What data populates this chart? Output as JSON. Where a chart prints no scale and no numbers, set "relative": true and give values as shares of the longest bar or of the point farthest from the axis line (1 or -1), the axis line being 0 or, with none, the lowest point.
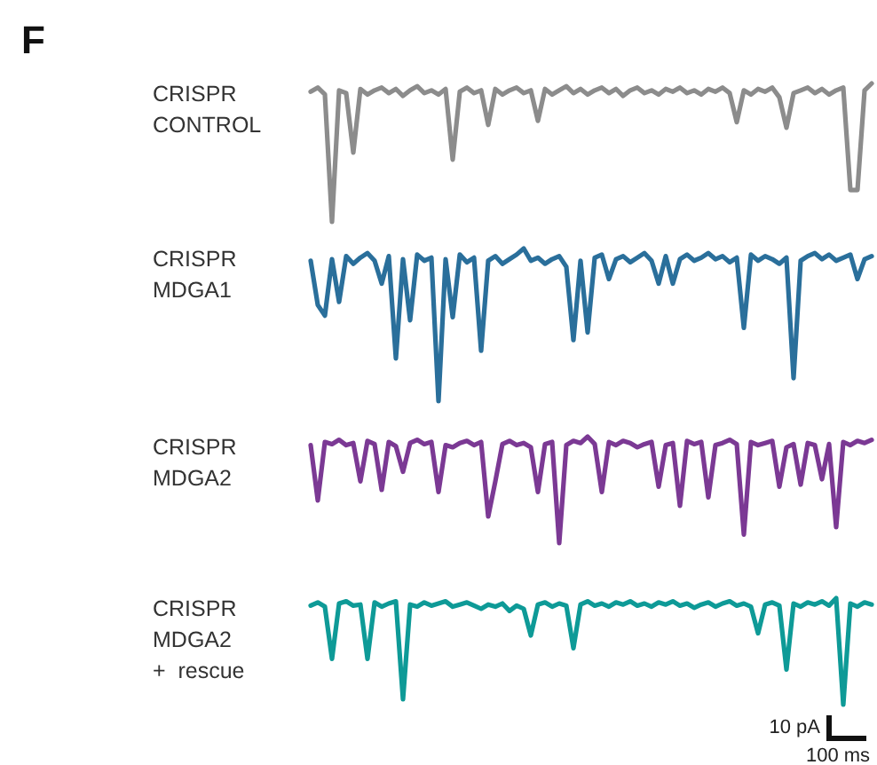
{
  "chart_data": [
    {
      "type": "line",
      "title": "CRISPR\nCONTROL",
      "relative": true,
      "annotations": [
        "F"
      ],
      "line_style": "solid",
      "categories": [
        null,
        null,
        null,
        null,
        null,
        null,
        null,
        null,
        null,
        null,
        null,
        null,
        null,
        null,
        null,
        null,
        null,
        null,
        null,
        null,
        null,
        null,
        null,
        null,
        null,
        null,
        null,
        null,
        null,
        null,
        null,
        null,
        null,
        null,
        null,
        null,
        null,
        null,
        null,
        null,
        null,
        null,
        null,
        null,
        null,
        null,
        null,
        null,
        null,
        null,
        null,
        null,
        null,
        null,
        null,
        null,
        null,
        null,
        null,
        null,
        null,
        null,
        null,
        null,
        null,
        null,
        null,
        null,
        null,
        null,
        null,
        null,
        null,
        null,
        null,
        null,
        null,
        null,
        null,
        null
      ],
      "series": [
        {
          "color": "#8c8c8c",
          "values": [
            0.94,
            0.97,
            0.92,
            0,
            0.95,
            0.93,
            0.5,
            0.96,
            0.92,
            0.95,
            0.97,
            0.93,
            0.96,
            0.91,
            0.95,
            0.98,
            0.93,
            0.95,
            0.92,
            0.96,
            0.45,
            0.94,
            0.97,
            0.93,
            0.95,
            0.7,
            0.96,
            0.92,
            0.95,
            0.97,
            0.93,
            0.95,
            0.73,
            0.96,
            0.92,
            0.95,
            0.98,
            0.93,
            0.96,
            0.92,
            0.95,
            0.97,
            0.93,
            0.96,
            0.91,
            0.95,
            0.97,
            0.93,
            0.95,
            0.92,
            0.96,
            0.94,
            0.97,
            0.93,
            0.95,
            0.92,
            0.96,
            0.94,
            0.97,
            0.93,
            0.72,
            0.95,
            0.92,
            0.96,
            0.94,
            0.97,
            0.9,
            0.68,
            0.93,
            0.95,
            0.97,
            0.93,
            0.96,
            0.92,
            0.95,
            0.97,
            0.23,
            0.23,
            0.95,
            1
          ]
        }
      ]
    },
    {
      "type": "line",
      "title": "CRISPR\nMDGA1",
      "relative": true,
      "line_style": "solid",
      "categories": [
        null,
        null,
        null,
        null,
        null,
        null,
        null,
        null,
        null,
        null,
        null,
        null,
        null,
        null,
        null,
        null,
        null,
        null,
        null,
        null,
        null,
        null,
        null,
        null,
        null,
        null,
        null,
        null,
        null,
        null,
        null,
        null,
        null,
        null,
        null,
        null,
        null,
        null,
        null,
        null,
        null,
        null,
        null,
        null,
        null,
        null,
        null,
        null,
        null,
        null,
        null,
        null,
        null,
        null,
        null,
        null,
        null,
        null,
        null,
        null,
        null,
        null,
        null,
        null,
        null,
        null,
        null,
        null,
        null,
        null,
        null,
        null,
        null,
        null,
        null,
        null,
        null,
        null,
        null,
        null
      ],
      "series": [
        {
          "color": "#2a6f9b",
          "values": [
            0.92,
            0.63,
            0.56,
            0.93,
            0.65,
            0.95,
            0.9,
            0.94,
            0.97,
            0.92,
            0.77,
            0.95,
            0.28,
            0.93,
            0.53,
            0.96,
            0.92,
            0.94,
            0,
            0.93,
            0.55,
            0.96,
            0.91,
            0.94,
            0.33,
            0.92,
            0.95,
            0.9,
            0.93,
            0.96,
            1,
            0.92,
            0.94,
            0.9,
            0.93,
            0.95,
            0.88,
            0.4,
            0.92,
            0.45,
            0.94,
            0.96,
            0.8,
            0.93,
            0.95,
            0.91,
            0.94,
            0.97,
            0.92,
            0.77,
            0.95,
            0.77,
            0.93,
            0.96,
            0.92,
            0.94,
            0.97,
            0.93,
            0.95,
            0.91,
            0.94,
            0.48,
            0.96,
            0.92,
            0.95,
            0.93,
            0.9,
            0.94,
            0.15,
            0.92,
            0.95,
            0.97,
            0.93,
            0.96,
            0.92,
            0.94,
            0.96,
            0.8,
            0.93,
            0.95
          ]
        }
      ]
    },
    {
      "type": "line",
      "title": "CRISPR\nMDGA2",
      "relative": true,
      "line_style": "solid",
      "categories": [
        null,
        null,
        null,
        null,
        null,
        null,
        null,
        null,
        null,
        null,
        null,
        null,
        null,
        null,
        null,
        null,
        null,
        null,
        null,
        null,
        null,
        null,
        null,
        null,
        null,
        null,
        null,
        null,
        null,
        null,
        null,
        null,
        null,
        null,
        null,
        null,
        null,
        null,
        null,
        null,
        null,
        null,
        null,
        null,
        null,
        null,
        null,
        null,
        null,
        null,
        null,
        null,
        null,
        null,
        null,
        null,
        null,
        null,
        null,
        null,
        null,
        null,
        null,
        null,
        null,
        null,
        null,
        null,
        null,
        null,
        null,
        null,
        null,
        null,
        null,
        null,
        null,
        null,
        null,
        null
      ],
      "series": [
        {
          "color": "#7b3994",
          "values": [
            0.92,
            0.4,
            0.95,
            0.93,
            0.97,
            0.92,
            0.94,
            0.58,
            0.96,
            0.93,
            0.5,
            0.95,
            0.91,
            0.67,
            0.94,
            0.97,
            0.93,
            0.95,
            0.48,
            0.92,
            0.9,
            0.94,
            0.96,
            0.92,
            0.95,
            0.25,
            0.58,
            0.93,
            0.96,
            0.92,
            0.94,
            0.9,
            0.48,
            0.93,
            0.95,
            0,
            0.92,
            0.96,
            0.94,
            1,
            0.93,
            0.48,
            0.95,
            0.92,
            0.96,
            0.94,
            0.9,
            0.93,
            0.95,
            0.53,
            0.92,
            0.94,
            0.35,
            0.96,
            0.93,
            0.95,
            0.43,
            0.92,
            0.94,
            0.97,
            0.93,
            0.08,
            0.95,
            0.92,
            0.94,
            0.96,
            0.53,
            0.9,
            0.93,
            0.55,
            0.94,
            0.92,
            0.6,
            0.93,
            0.15,
            0.95,
            0.92,
            0.96,
            0.94,
            0.97
          ]
        }
      ]
    },
    {
      "type": "line",
      "title": "CRISPR\nMDGA2\n+  rescue",
      "relative": true,
      "line_style": "solid",
      "annotations": [
        "10 pA",
        "100 ms"
      ],
      "categories": [
        null,
        null,
        null,
        null,
        null,
        null,
        null,
        null,
        null,
        null,
        null,
        null,
        null,
        null,
        null,
        null,
        null,
        null,
        null,
        null,
        null,
        null,
        null,
        null,
        null,
        null,
        null,
        null,
        null,
        null,
        null,
        null,
        null,
        null,
        null,
        null,
        null,
        null,
        null,
        null,
        null,
        null,
        null,
        null,
        null,
        null,
        null,
        null,
        null,
        null,
        null,
        null,
        null,
        null,
        null,
        null,
        null,
        null,
        null,
        null,
        null,
        null,
        null,
        null,
        null,
        null,
        null,
        null,
        null,
        null,
        null,
        null,
        null,
        null,
        null,
        null,
        null,
        null,
        null,
        null
      ],
      "series": [
        {
          "color": "#0e9a97",
          "values": [
            0.93,
            0.96,
            0.92,
            0.43,
            0.95,
            0.97,
            0.93,
            0.94,
            0.43,
            0.96,
            0.92,
            0.95,
            0.97,
            0.05,
            0.94,
            0.92,
            0.96,
            0.93,
            0.95,
            0.97,
            0.92,
            0.94,
            0.96,
            0.93,
            0.9,
            0.94,
            0.92,
            0.95,
            0.88,
            0.93,
            0.9,
            0.65,
            0.94,
            0.96,
            0.92,
            0.95,
            0.93,
            0.53,
            0.94,
            0.97,
            0.93,
            0.95,
            0.92,
            0.96,
            0.94,
            0.97,
            0.93,
            0.95,
            0.92,
            0.96,
            0.94,
            0.97,
            0.93,
            0.95,
            0.91,
            0.94,
            0.96,
            0.92,
            0.95,
            0.97,
            0.93,
            0.95,
            0.92,
            0.67,
            0.94,
            0.96,
            0.93,
            0.33,
            0.95,
            0.92,
            0.96,
            0.94,
            0.97,
            0.93,
            1,
            0,
            0.95,
            0.92,
            0.96,
            0.94
          ]
        }
      ]
    }
  ]
}
